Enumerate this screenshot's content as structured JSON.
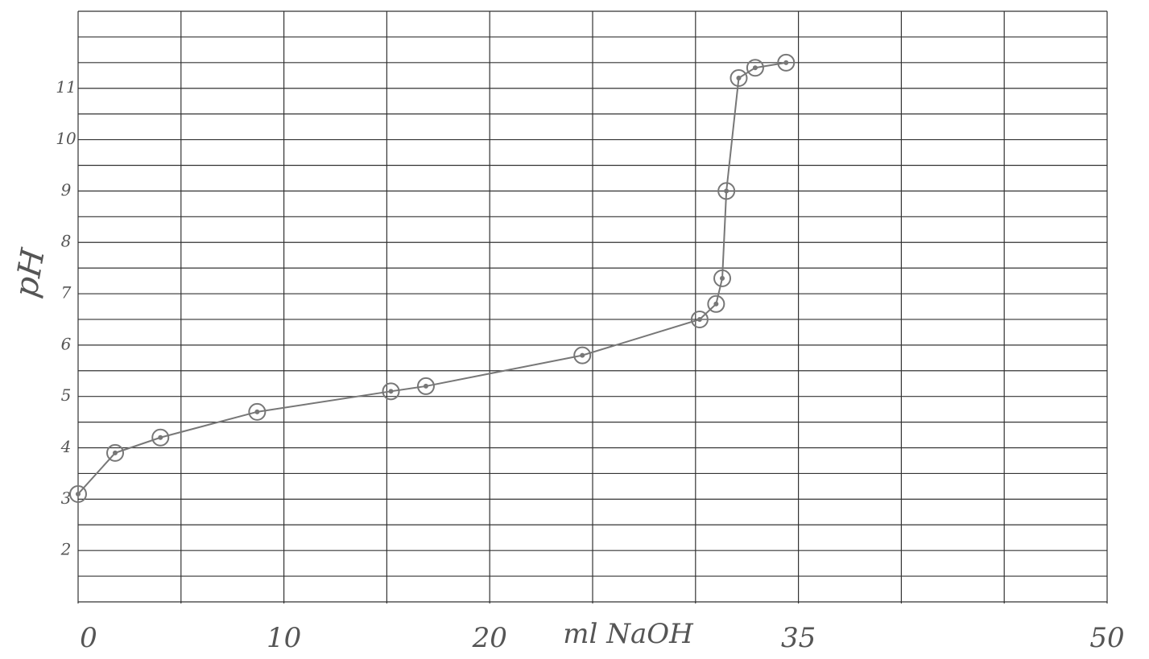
{
  "chart_data": {
    "type": "line",
    "x_label": "ml NaOH",
    "y_label": "pH",
    "x": [
      0,
      1.8,
      4,
      8.7,
      15.2,
      16.9,
      24.5,
      30.2,
      31,
      31.3,
      31.5,
      32.1,
      32.9,
      34.4
    ],
    "series": [
      {
        "name": "pH",
        "color": "#777777",
        "values": [
          3.1,
          3.9,
          4.2,
          4.7,
          5.1,
          5.2,
          5.8,
          6.5,
          6.8,
          7.3,
          9,
          11.2,
          11.4,
          11.5
        ]
      }
    ],
    "xlim": [
      0,
      50
    ],
    "xticks": [
      0,
      10,
      20,
      35,
      50
    ],
    "ylim": [
      1,
      12.5
    ],
    "yticks": [
      2,
      3,
      4,
      5,
      6,
      7,
      8,
      9,
      10,
      11
    ],
    "x_gridlines": [
      0,
      5,
      10,
      15,
      20,
      25,
      30,
      35,
      40,
      45,
      50
    ],
    "y_gridlines": [
      1,
      1.5,
      2,
      2.5,
      3,
      3.5,
      4,
      4.5,
      5,
      5.5,
      6,
      6.5,
      7,
      7.5,
      8,
      8.5,
      9,
      9.5,
      10,
      10.5,
      11,
      11.5,
      12,
      12.5
    ]
  }
}
